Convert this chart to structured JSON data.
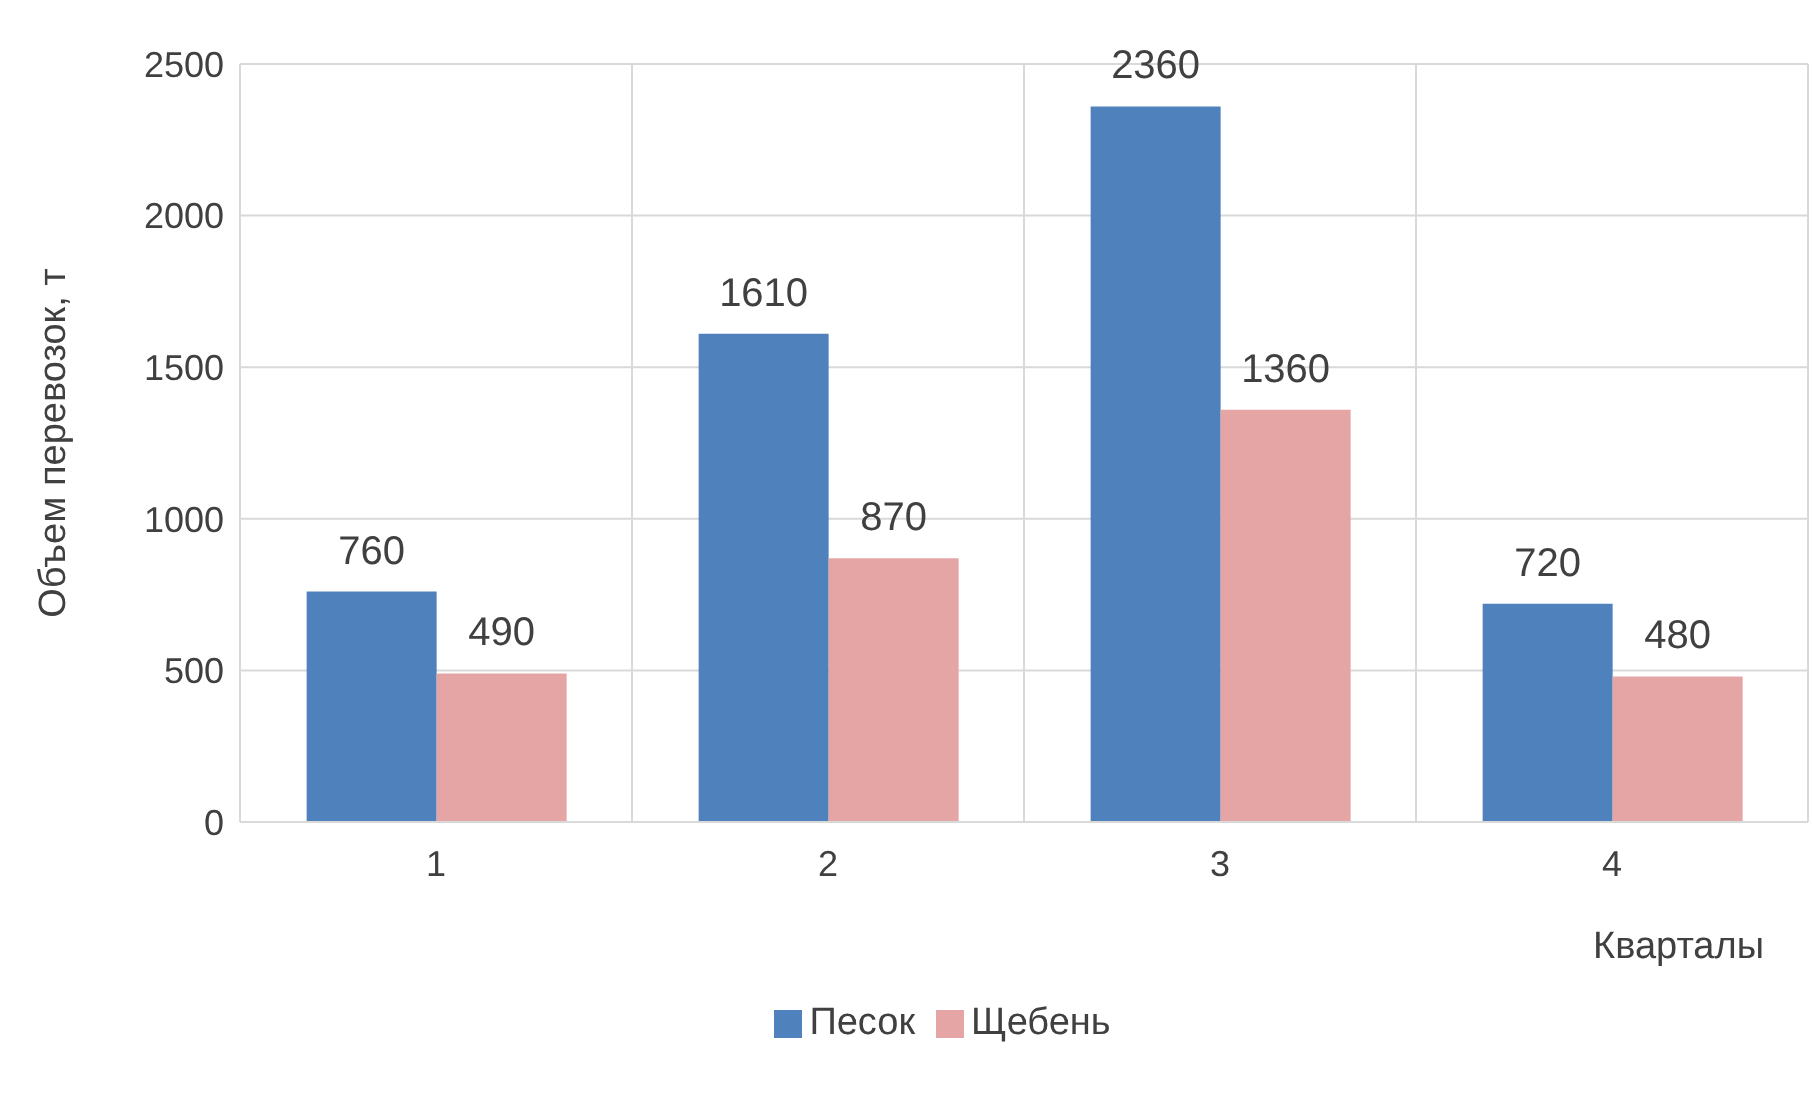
{
  "chart_data": {
    "type": "bar",
    "categories": [
      "1",
      "2",
      "3",
      "4"
    ],
    "series": [
      {
        "name": "Песок",
        "color": "#4f81bd",
        "values": [
          760,
          1610,
          2360,
          720
        ]
      },
      {
        "name": "Щебень",
        "color": "#e6a5a5",
        "values": [
          490,
          870,
          1360,
          480
        ]
      }
    ],
    "ylim": [
      0,
      2500
    ],
    "yticks": [
      0,
      500,
      1000,
      1500,
      2000,
      2500
    ],
    "ylabel": "Объем перевозок, т",
    "xlabel": "Кварталы",
    "grid": true,
    "legend": "bottom",
    "data_labels": true
  }
}
